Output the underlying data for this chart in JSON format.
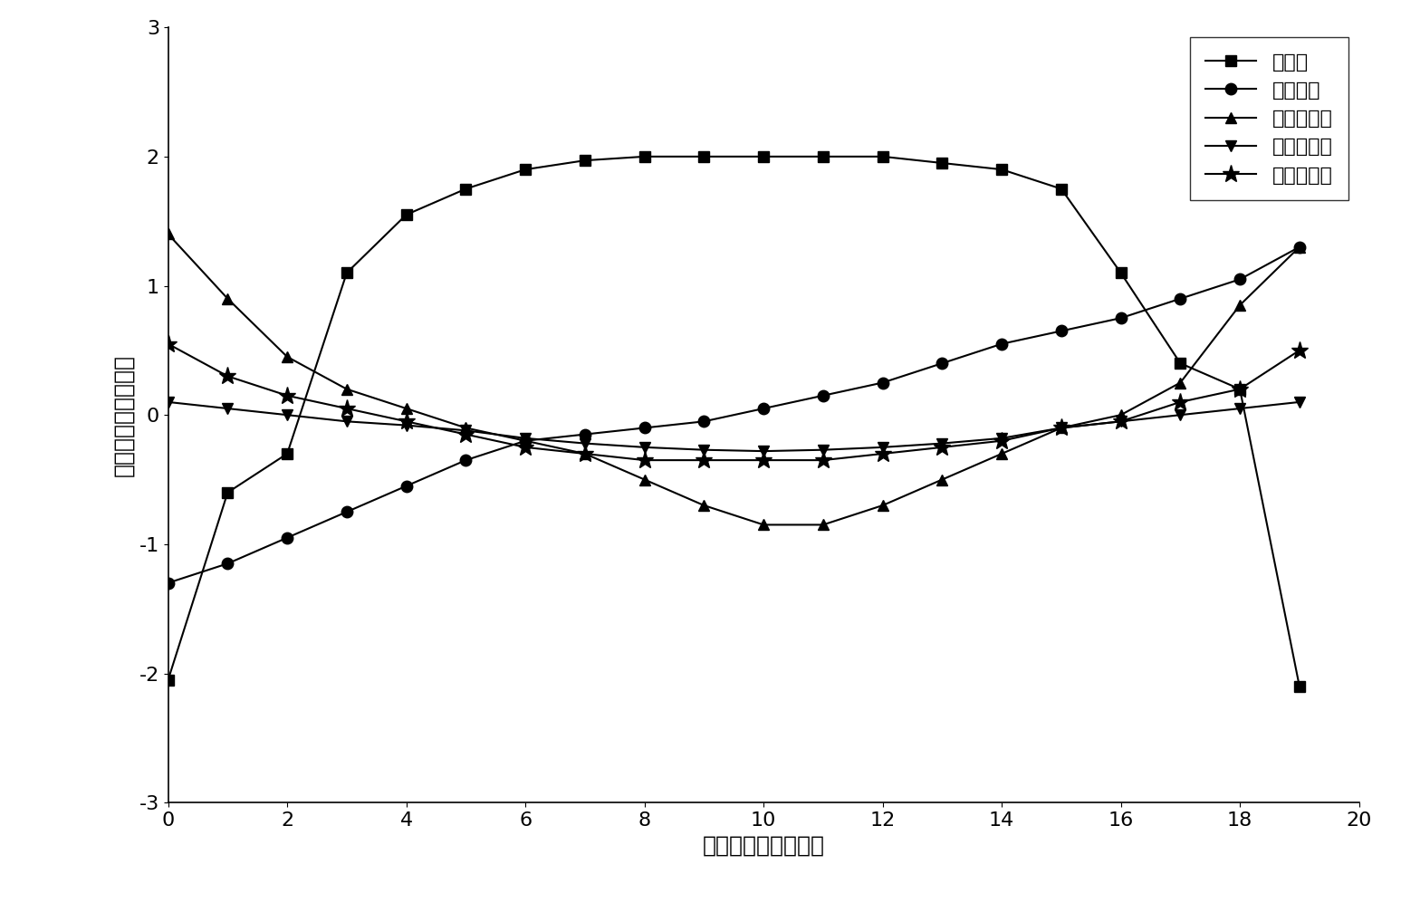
{
  "title": "",
  "xlabel": "带钢宽度方向测量点",
  "ylabel": "调控功效系数先验值",
  "xlim": [
    0,
    20
  ],
  "ylim": [
    -3,
    3
  ],
  "xticks": [
    0,
    2,
    4,
    6,
    8,
    10,
    12,
    14,
    16,
    18,
    20
  ],
  "yticks": [
    -3,
    -2,
    -1,
    0,
    1,
    2,
    3
  ],
  "series": [
    {
      "name": "轧制力",
      "marker": "s",
      "x": [
        0,
        1,
        2,
        3,
        4,
        5,
        6,
        7,
        8,
        9,
        10,
        11,
        12,
        13,
        14,
        15,
        16,
        17,
        18,
        19
      ],
      "y": [
        -2.05,
        -0.6,
        -0.3,
        1.1,
        1.55,
        1.75,
        1.9,
        1.97,
        2.0,
        2.0,
        2.0,
        2.0,
        2.0,
        1.95,
        1.9,
        1.75,
        1.1,
        0.4,
        0.2,
        -2.1
      ]
    },
    {
      "name": "轧辊倾斜",
      "marker": "o",
      "x": [
        0,
        1,
        2,
        3,
        4,
        5,
        6,
        7,
        8,
        9,
        10,
        11,
        12,
        13,
        14,
        15,
        16,
        17,
        18,
        19
      ],
      "y": [
        -1.3,
        -1.15,
        -0.95,
        -0.75,
        -0.55,
        -0.35,
        -0.2,
        -0.15,
        -0.1,
        -0.05,
        0.05,
        0.15,
        0.25,
        0.4,
        0.55,
        0.65,
        0.75,
        0.9,
        1.05,
        1.3
      ]
    },
    {
      "name": "工作辊弯辊",
      "marker": "^",
      "x": [
        0,
        1,
        2,
        3,
        4,
        5,
        6,
        7,
        8,
        9,
        10,
        11,
        12,
        13,
        14,
        15,
        16,
        17,
        18,
        19
      ],
      "y": [
        1.4,
        0.9,
        0.45,
        0.2,
        0.05,
        -0.1,
        -0.2,
        -0.3,
        -0.5,
        -0.7,
        -0.85,
        -0.85,
        -0.7,
        -0.5,
        -0.3,
        -0.1,
        0.0,
        0.25,
        0.85,
        1.3
      ]
    },
    {
      "name": "中间辊弯辊",
      "marker": "v",
      "x": [
        0,
        1,
        2,
        3,
        4,
        5,
        6,
        7,
        8,
        9,
        10,
        11,
        12,
        13,
        14,
        15,
        16,
        17,
        18,
        19
      ],
      "y": [
        0.1,
        0.05,
        0.0,
        -0.05,
        -0.08,
        -0.12,
        -0.18,
        -0.22,
        -0.25,
        -0.27,
        -0.28,
        -0.27,
        -0.25,
        -0.22,
        -0.18,
        -0.1,
        -0.05,
        0.0,
        0.05,
        0.1
      ]
    },
    {
      "name": "中间辊横移",
      "marker": "*",
      "x": [
        0,
        1,
        2,
        3,
        4,
        5,
        6,
        7,
        8,
        9,
        10,
        11,
        12,
        13,
        14,
        15,
        16,
        17,
        18,
        19
      ],
      "y": [
        0.55,
        0.3,
        0.15,
        0.05,
        -0.05,
        -0.15,
        -0.25,
        -0.3,
        -0.35,
        -0.35,
        -0.35,
        -0.35,
        -0.3,
        -0.25,
        -0.2,
        -0.1,
        -0.05,
        0.1,
        0.2,
        0.5
      ]
    }
  ],
  "line_color": "#000000",
  "marker_size": 9,
  "legend_loc": "upper right",
  "legend_fontsize": 16,
  "axis_label_fontsize": 18,
  "tick_fontsize": 16,
  "background_color": "#ffffff"
}
